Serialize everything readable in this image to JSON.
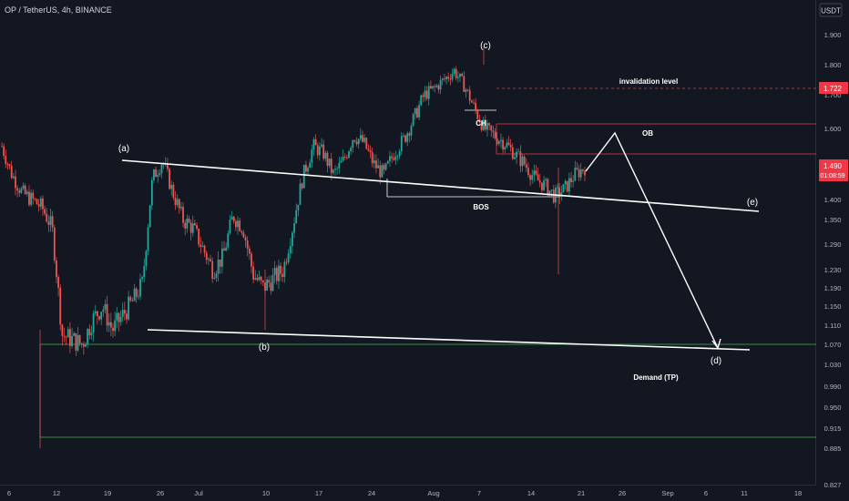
{
  "header": {
    "symbol_line": "OP / TetherUS, 4h, BINANCE",
    "currency_badge": "USDT"
  },
  "chart_data": {
    "type": "candlestick",
    "ylim": [
      0.827,
      1.96
    ],
    "y_axis_ticks": [
      1.9,
      1.8,
      1.7,
      1.6,
      1.4,
      1.35,
      1.29,
      1.23,
      1.19,
      1.15,
      1.11,
      1.07,
      1.03,
      0.99,
      0.95,
      0.915,
      0.885,
      0.827
    ],
    "y_axis_labels": [
      "1.900",
      "1.800",
      "1.700",
      "1.600",
      "1.400",
      "1.350",
      "1.290",
      "1.230",
      "1.190",
      "1.150",
      "1.110",
      "1.070",
      "1.030",
      "0.990",
      "0.950",
      "0.915",
      "0.885",
      "0.827"
    ],
    "x_axis_labels": [
      "6",
      "12",
      "19",
      "26",
      "Jul",
      "10",
      "17",
      "24",
      "Aug",
      "7",
      "14",
      "21",
      "26",
      "Sep",
      "6",
      "11",
      "18"
    ],
    "price_tag": {
      "value": 1.49,
      "label": "1.490",
      "countdown": "01:08:59",
      "color": "#f23645"
    },
    "invalidation_tag": {
      "value": 1.722,
      "label": "1.722",
      "color": "#f23645"
    },
    "price_path": [
      1.55,
      1.47,
      1.42,
      1.4,
      1.38,
      1.33,
      1.09,
      1.08,
      1.07,
      1.12,
      1.15,
      1.1,
      1.13,
      1.16,
      1.2,
      1.46,
      1.51,
      1.42,
      1.35,
      1.33,
      1.28,
      1.23,
      1.26,
      1.36,
      1.33,
      1.22,
      1.19,
      1.21,
      1.23,
      1.34,
      1.47,
      1.55,
      1.53,
      1.47,
      1.51,
      1.58,
      1.56,
      1.5,
      1.47,
      1.53,
      1.57,
      1.63,
      1.7,
      1.72,
      1.75,
      1.78,
      1.73,
      1.66,
      1.6,
      1.58,
      1.56,
      1.53,
      1.5,
      1.46,
      1.44,
      1.41,
      1.43,
      1.47,
      1.49
    ],
    "annotations": {
      "wave_labels": [
        "(a)",
        "(b)",
        "(c)",
        "(d)",
        "(e)"
      ],
      "ch": "CH",
      "bos": "BOS",
      "ob": "OB",
      "invalidation": "invalidation level",
      "demand": "Demand (TP)"
    },
    "grid": false,
    "colors": {
      "up": "#26a69a",
      "down": "#ef5350",
      "background": "#131722",
      "trendline": "#ffffff",
      "demand_line": "#4caf50",
      "ob_line": "#f23645"
    }
  }
}
